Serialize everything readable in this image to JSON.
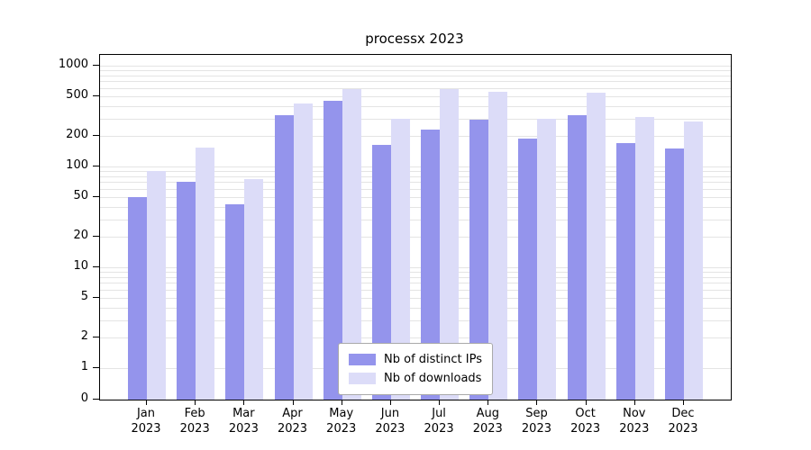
{
  "title": "processx 2023",
  "chart_data": {
    "type": "bar",
    "title": "processx 2023",
    "categories": [
      "Jan",
      "Feb",
      "Mar",
      "Apr",
      "May",
      "Jun",
      "Jul",
      "Aug",
      "Sep",
      "Oct",
      "Nov",
      "Dec"
    ],
    "year_label": "2023",
    "series": [
      {
        "name": "Nb of distinct IPs",
        "color": "#9494ec",
        "values": [
          50,
          70,
          42,
          320,
          450,
          165,
          230,
          290,
          190,
          320,
          170,
          150
        ]
      },
      {
        "name": "Nb of downloads",
        "color": "#dcdcf8",
        "values": [
          90,
          155,
          75,
          420,
          580,
          300,
          580,
          550,
          295,
          540,
          310,
          280
        ]
      }
    ],
    "yscale": "symlog",
    "yticks": [
      0,
      1,
      2,
      5,
      10,
      20,
      50,
      100,
      200,
      500,
      1000
    ],
    "ylim": [
      0,
      1280
    ],
    "grid": "horizontal-log-minor",
    "legend_position": "lower-center-inside"
  }
}
